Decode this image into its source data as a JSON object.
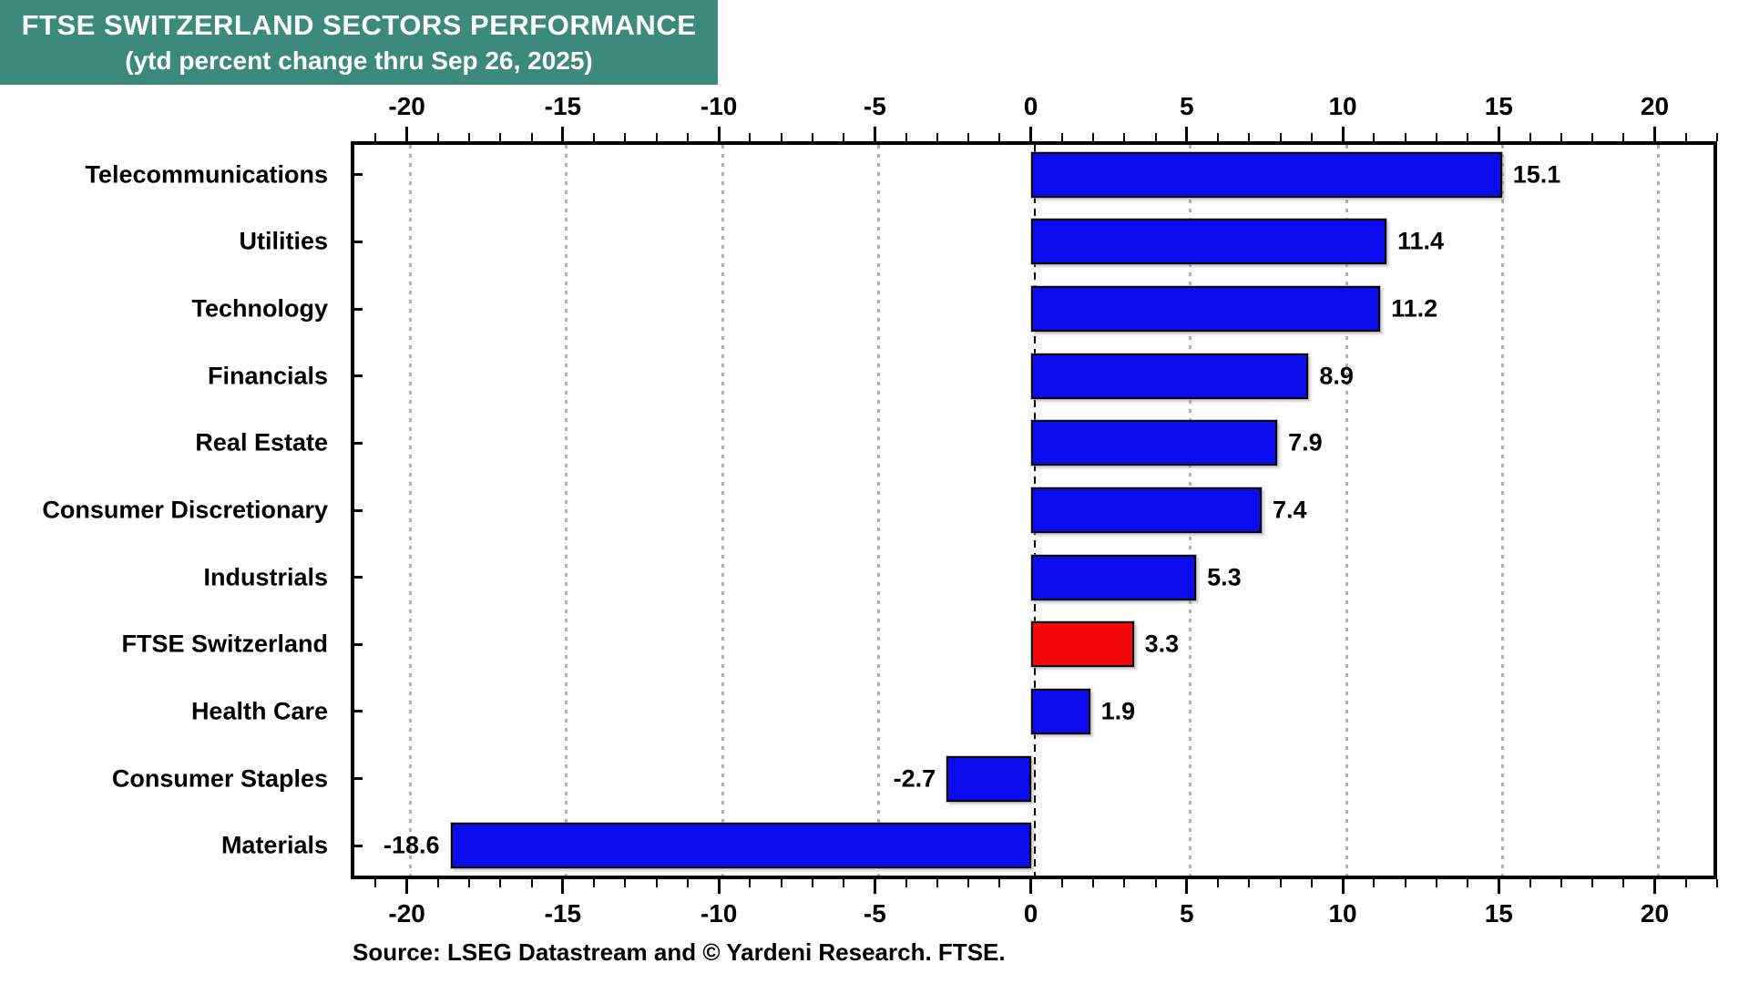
{
  "title": {
    "line1": "FTSE SWITZERLAND SECTORS PERFORMANCE",
    "line2": "(ytd percent change thru Sep 26, 2025)",
    "bg_color": "#3C8A7C",
    "text_color": "#FFFFFF"
  },
  "source": {
    "text": "Source: LSEG Datastream and © Yardeni Research. FTSE."
  },
  "chart_data": {
    "type": "bar",
    "orientation": "horizontal",
    "title": "FTSE SWITZERLAND SECTORS PERFORMANCE (ytd percent change thru Sep 26, 2025)",
    "categories": [
      "Telecommunications",
      "Utilities",
      "Technology",
      "Financials",
      "Real Estate",
      "Consumer Discretionary",
      "Industrials",
      "FTSE Switzerland",
      "Health Care",
      "Consumer Staples",
      "Materials"
    ],
    "values": [
      15.1,
      11.4,
      11.2,
      8.9,
      7.9,
      7.4,
      5.3,
      3.3,
      1.9,
      -2.7,
      -18.6
    ],
    "value_labels": [
      "15.1",
      "11.4",
      "11.2",
      "8.9",
      "7.9",
      "7.4",
      "5.3",
      "3.3",
      "1.9",
      "-2.7",
      "-18.6"
    ],
    "highlight_category": "FTSE Switzerland",
    "highlight_index": 7,
    "bar_color_default": "#0b0bee",
    "bar_color_highlight": "#f50808",
    "xlim": [
      -21.8,
      22.0
    ],
    "x_major_ticks": [
      -20,
      -15,
      -10,
      -5,
      0,
      5,
      10,
      15,
      20
    ],
    "x_tick_labels": [
      "-20",
      "-15",
      "-10",
      "-5",
      "0",
      "5",
      "10",
      "15",
      "20"
    ],
    "minor_tick_step": 1,
    "grid": "vertical dotted gray at major ticks; dashed black line at zero",
    "gridline_color": "#b0b0b0",
    "legend": "none"
  }
}
